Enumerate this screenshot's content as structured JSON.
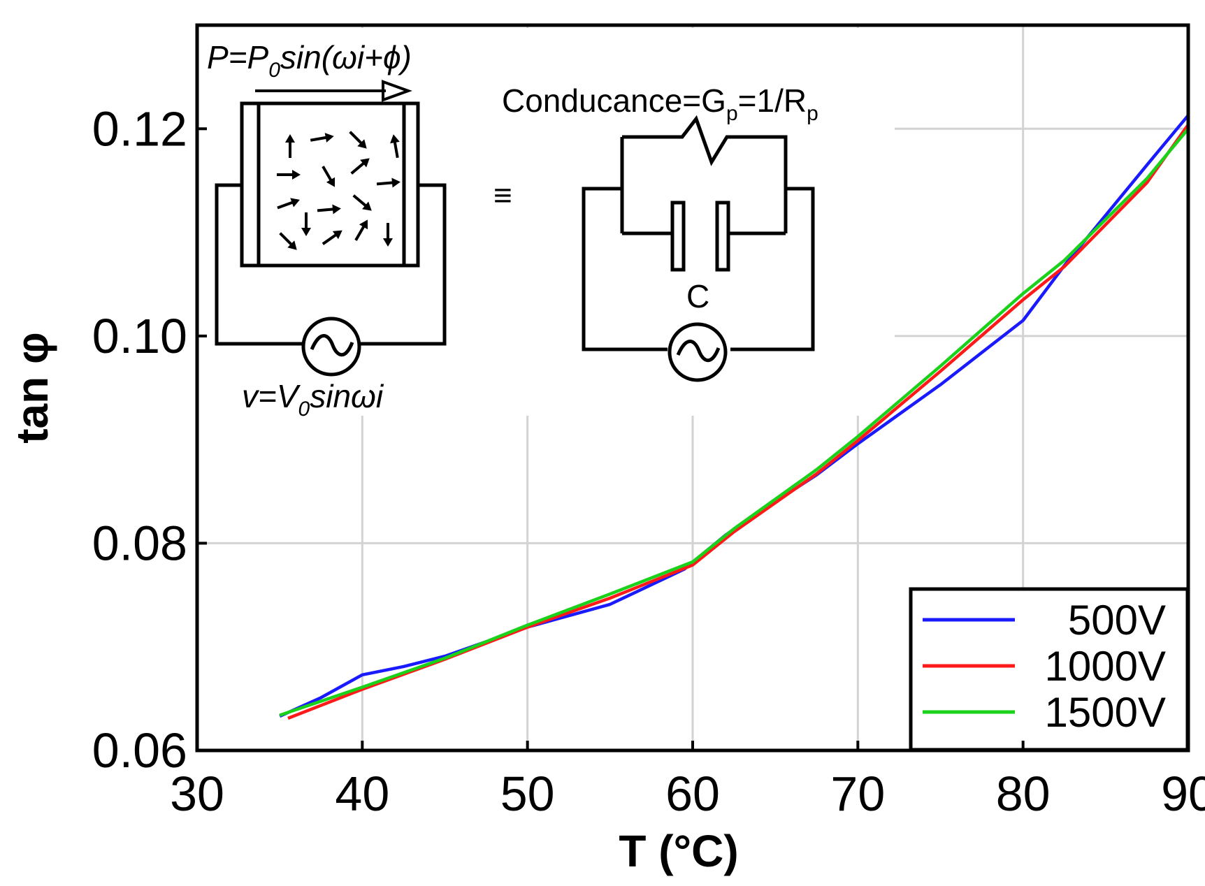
{
  "chart_data": {
    "type": "line",
    "title": "",
    "xlabel": "T (°C)",
    "ylabel": "tan φ",
    "xlim": [
      30,
      90
    ],
    "ylim": [
      0.06,
      0.13
    ],
    "xticks": [
      "30",
      "40",
      "50",
      "60",
      "70",
      "80",
      "90"
    ],
    "yticks": [
      "0.06",
      "0.08",
      "0.10",
      "0.12"
    ],
    "grid": true,
    "legend_position": "bottom-right",
    "series": [
      {
        "name": "500V",
        "color": "#1a1aff",
        "x": [
          35,
          37.5,
          40,
          42.5,
          45,
          50,
          55,
          59.5,
          62,
          65,
          67.5,
          70,
          75,
          80,
          82.5,
          87.5,
          90
        ],
        "y": [
          0.0633,
          0.0651,
          0.0673,
          0.0681,
          0.0691,
          0.0719,
          0.0741,
          0.0775,
          0.0808,
          0.084,
          0.0866,
          0.0896,
          0.0953,
          0.1015,
          0.1068,
          0.1165,
          0.1213
        ]
      },
      {
        "name": "1000V",
        "color": "#ff1a1a",
        "x": [
          35.5,
          40,
          45,
          50,
          55,
          60,
          62.5,
          67.5,
          70,
          75,
          80,
          82.5,
          87.5,
          90
        ],
        "y": [
          0.0631,
          0.0659,
          0.0688,
          0.0719,
          0.0747,
          0.0779,
          0.0811,
          0.0867,
          0.0899,
          0.0966,
          0.1035,
          0.1067,
          0.1148,
          0.1204
        ]
      },
      {
        "name": "1500V",
        "color": "#19d219",
        "x": [
          35,
          40,
          45,
          50,
          55,
          60,
          62.5,
          67.5,
          70,
          75,
          80,
          82.5,
          87.5,
          90
        ],
        "y": [
          0.0634,
          0.0661,
          0.0689,
          0.0721,
          0.0751,
          0.0782,
          0.0814,
          0.0871,
          0.0903,
          0.0971,
          0.1041,
          0.1073,
          0.1152,
          0.12
        ]
      }
    ],
    "inset": {
      "polarization_eq": "P=P",
      "polarization_sub": "0",
      "polarization_rest": "sin(ωi+ϕ)",
      "voltage_eq": "v=V",
      "voltage_sub": "0",
      "voltage_rest": "sinωi",
      "equiv_symbol": "≡",
      "conductance_label": "Conducance=G",
      "conductance_sub1": "p",
      "conductance_mid": "=1/R",
      "conductance_sub2": "p",
      "capacitor_label": "C",
      "source_symbol": "~"
    }
  }
}
